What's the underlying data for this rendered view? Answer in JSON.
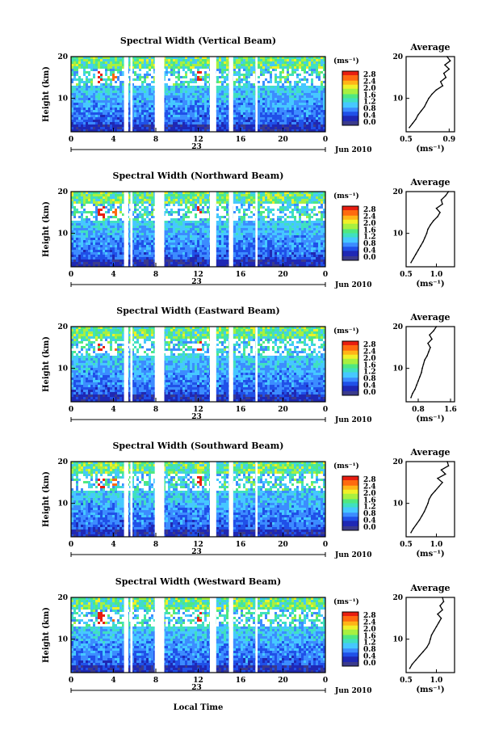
{
  "figure": {
    "xaxis_label": "Local Time",
    "date_label": "Jun 2010",
    "day_label": "23"
  },
  "chart_data": [
    {
      "type": "heatmap",
      "title": "Spectral Width (Vertical Beam)",
      "ylabel": "Height (km)",
      "xlabel": "Local Time",
      "xlim": [
        0,
        24
      ],
      "ylim": [
        2,
        20
      ],
      "xticks": [
        "0",
        "4",
        "8",
        "12",
        "16",
        "20",
        "0"
      ],
      "yticks": [
        "10",
        "20"
      ],
      "gaps_hours": [
        [
          5.0,
          5.4
        ],
        [
          5.6,
          5.8
        ],
        [
          7.9,
          8.8
        ],
        [
          13.1,
          13.7
        ],
        [
          14.9,
          15.3
        ],
        [
          17.4,
          17.6
        ]
      ],
      "colorbar": {
        "unit": "(ms⁻¹)",
        "ticks": [
          "2.8",
          "2.4",
          "2.0",
          "1.6",
          "1.2",
          "0.8",
          "0.4",
          "0.0"
        ],
        "range": [
          0,
          2.8
        ]
      },
      "average": {
        "title": "Average",
        "xlabel": "(ms⁻¹)",
        "xticks": [
          "0.5",
          "0.9"
        ],
        "xlim": [
          0.5,
          0.95
        ],
        "yticks": [
          "10",
          "20"
        ],
        "height": [
          3,
          4,
          5,
          6,
          7,
          8,
          9,
          10,
          11,
          12,
          13,
          14,
          15,
          16,
          17,
          18,
          19,
          20
        ],
        "value": [
          0.53,
          0.56,
          0.59,
          0.61,
          0.64,
          0.67,
          0.69,
          0.71,
          0.74,
          0.78,
          0.84,
          0.82,
          0.87,
          0.85,
          0.9,
          0.86,
          0.91,
          0.88
        ]
      }
    },
    {
      "type": "heatmap",
      "title": "Spectral Width (Northward Beam)",
      "ylabel": "Height (km)",
      "xlabel": "Local Time",
      "xlim": [
        0,
        24
      ],
      "ylim": [
        2,
        20
      ],
      "xticks": [
        "0",
        "4",
        "8",
        "12",
        "16",
        "20",
        "0"
      ],
      "yticks": [
        "10",
        "20"
      ],
      "gaps_hours": [
        [
          5.0,
          5.4
        ],
        [
          5.6,
          5.8
        ],
        [
          7.9,
          8.8
        ],
        [
          13.1,
          13.7
        ],
        [
          14.9,
          15.3
        ],
        [
          17.4,
          17.6
        ]
      ],
      "colorbar": {
        "unit": "(ms⁻¹)",
        "ticks": [
          "2.8",
          "2.4",
          "2.0",
          "1.6",
          "1.2",
          "0.8",
          "0.4",
          "0.0"
        ],
        "range": [
          0,
          2.8
        ]
      },
      "average": {
        "title": "Average",
        "xlabel": "(ms⁻¹)",
        "xticks": [
          "0.5",
          "1.0"
        ],
        "xlim": [
          0.5,
          1.3
        ],
        "yticks": [
          "10",
          "20"
        ],
        "height": [
          3,
          4,
          5,
          6,
          7,
          8,
          9,
          10,
          11,
          12,
          13,
          14,
          15,
          16,
          17,
          18,
          19,
          20
        ],
        "value": [
          0.58,
          0.62,
          0.66,
          0.7,
          0.74,
          0.78,
          0.81,
          0.84,
          0.86,
          0.9,
          0.95,
          1.02,
          1.06,
          1.0,
          1.1,
          1.08,
          1.15,
          1.2
        ]
      }
    },
    {
      "type": "heatmap",
      "title": "Spectral Width (Eastward Beam)",
      "ylabel": "Height (km)",
      "xlabel": "Local Time",
      "xlim": [
        0,
        24
      ],
      "ylim": [
        2,
        20
      ],
      "xticks": [
        "0",
        "4",
        "8",
        "12",
        "16",
        "20",
        "0"
      ],
      "yticks": [
        "10",
        "20"
      ],
      "gaps_hours": [
        [
          5.0,
          5.4
        ],
        [
          5.6,
          5.8
        ],
        [
          7.9,
          8.8
        ],
        [
          13.1,
          13.7
        ],
        [
          14.9,
          15.3
        ],
        [
          17.4,
          17.6
        ]
      ],
      "colorbar": {
        "unit": "(ms⁻¹)",
        "ticks": [
          "2.8",
          "2.4",
          "2.0",
          "1.6",
          "1.2",
          "0.8",
          "0.4",
          "0.0"
        ],
        "range": [
          0,
          2.8
        ]
      },
      "average": {
        "title": "Average",
        "xlabel": "(ms⁻¹)",
        "xticks": [
          "0.8",
          "1.6"
        ],
        "xlim": [
          0.5,
          1.7
        ],
        "yticks": [
          "10",
          "20"
        ],
        "height": [
          3,
          4,
          5,
          6,
          7,
          8,
          9,
          10,
          11,
          12,
          13,
          14,
          15,
          16,
          17,
          18,
          19,
          20
        ],
        "value": [
          0.62,
          0.66,
          0.72,
          0.76,
          0.8,
          0.84,
          0.88,
          0.9,
          0.93,
          0.96,
          1.02,
          1.06,
          1.1,
          1.04,
          1.14,
          1.08,
          1.18,
          1.25
        ]
      }
    },
    {
      "type": "heatmap",
      "title": "Spectral Width (Southward Beam)",
      "ylabel": "Height (km)",
      "xlabel": "Local Time",
      "xlim": [
        0,
        24
      ],
      "ylim": [
        2,
        20
      ],
      "xticks": [
        "0",
        "4",
        "8",
        "12",
        "16",
        "20",
        "0"
      ],
      "yticks": [
        "10",
        "20"
      ],
      "gaps_hours": [
        [
          5.0,
          5.4
        ],
        [
          5.6,
          5.8
        ],
        [
          7.9,
          8.8
        ],
        [
          13.1,
          13.7
        ],
        [
          14.9,
          15.3
        ],
        [
          17.4,
          17.6
        ]
      ],
      "colorbar": {
        "unit": "(ms⁻¹)",
        "ticks": [
          "2.8",
          "2.4",
          "2.0",
          "1.6",
          "1.2",
          "0.8",
          "0.4",
          "0.0"
        ],
        "range": [
          0,
          2.8
        ]
      },
      "average": {
        "title": "Average",
        "xlabel": "(ms⁻¹)",
        "xticks": [
          "0.5",
          "1.0"
        ],
        "xlim": [
          0.5,
          1.3
        ],
        "yticks": [
          "10",
          "20"
        ],
        "height": [
          3,
          4,
          5,
          6,
          7,
          8,
          9,
          10,
          11,
          12,
          13,
          14,
          15,
          16,
          17,
          18,
          19,
          20
        ],
        "value": [
          0.58,
          0.62,
          0.67,
          0.72,
          0.76,
          0.8,
          0.83,
          0.86,
          0.88,
          0.92,
          0.98,
          1.04,
          1.1,
          1.02,
          1.15,
          1.08,
          1.2,
          1.18
        ]
      }
    },
    {
      "type": "heatmap",
      "title": "Spectral Width (Westward Beam)",
      "ylabel": "Height (km)",
      "xlabel": "Local Time",
      "xlim": [
        0,
        24
      ],
      "ylim": [
        2,
        20
      ],
      "xticks": [
        "0",
        "4",
        "8",
        "12",
        "16",
        "20",
        "0"
      ],
      "yticks": [
        "10",
        "20"
      ],
      "gaps_hours": [
        [
          5.0,
          5.4
        ],
        [
          5.6,
          5.8
        ],
        [
          7.9,
          8.8
        ],
        [
          13.1,
          13.7
        ],
        [
          14.9,
          15.3
        ],
        [
          17.4,
          17.6
        ]
      ],
      "colorbar": {
        "unit": "(ms⁻¹)",
        "ticks": [
          "2.8",
          "2.4",
          "2.0",
          "1.6",
          "1.2",
          "0.8",
          "0.4",
          "0.0"
        ],
        "range": [
          0,
          2.8
        ]
      },
      "average": {
        "title": "Average",
        "xlabel": "(ms⁻¹)",
        "xticks": [
          "0.5",
          "1.0"
        ],
        "xlim": [
          0.5,
          1.3
        ],
        "yticks": [
          "10",
          "20"
        ],
        "height": [
          3,
          4,
          5,
          6,
          7,
          8,
          9,
          10,
          11,
          12,
          13,
          14,
          15,
          16,
          17,
          18,
          19,
          20
        ],
        "value": [
          0.56,
          0.6,
          0.66,
          0.72,
          0.78,
          0.84,
          0.88,
          0.9,
          0.92,
          0.96,
          1.0,
          1.04,
          1.08,
          1.02,
          1.1,
          1.06,
          1.12,
          1.1
        ]
      }
    }
  ],
  "colormap": [
    "#3b3b8c",
    "#1f28b4",
    "#2050e8",
    "#3c8cff",
    "#46c8ff",
    "#40e0c0",
    "#50e880",
    "#a8f040",
    "#f0f028",
    "#ffb418",
    "#ff6a10",
    "#e81e10"
  ]
}
